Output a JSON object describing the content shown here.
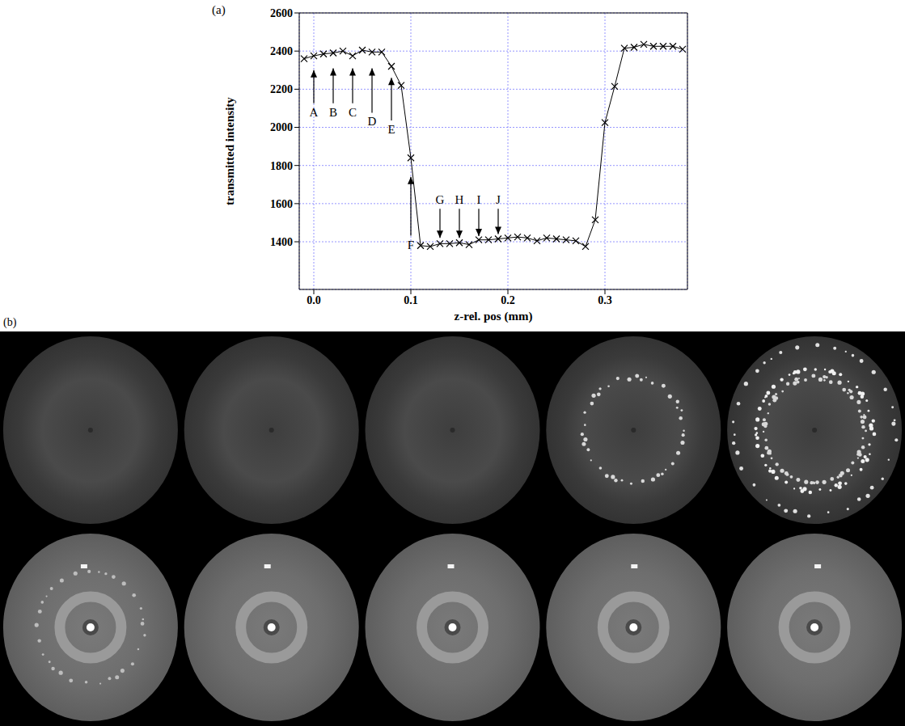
{
  "chart_data": {
    "type": "line",
    "panel_label": "(a)",
    "xlabel": "z-rel. pos (mm)",
    "ylabel": "transmitted intensity",
    "x": [
      -0.01,
      0.0,
      0.01,
      0.02,
      0.03,
      0.04,
      0.05,
      0.06,
      0.07,
      0.08,
      0.09,
      0.1,
      0.11,
      0.12,
      0.13,
      0.14,
      0.15,
      0.16,
      0.17,
      0.18,
      0.19,
      0.2,
      0.21,
      0.22,
      0.23,
      0.24,
      0.25,
      0.26,
      0.27,
      0.28,
      0.29,
      0.3,
      0.31,
      0.32,
      0.33,
      0.34,
      0.35,
      0.36,
      0.37,
      0.38
    ],
    "values": [
      2360,
      2375,
      2385,
      2390,
      2400,
      2375,
      2405,
      2395,
      2395,
      2320,
      2220,
      1840,
      1380,
      1375,
      1390,
      1390,
      1395,
      1385,
      1410,
      1410,
      1415,
      1420,
      1425,
      1420,
      1405,
      1420,
      1415,
      1410,
      1405,
      1375,
      1515,
      2025,
      2215,
      2415,
      2420,
      2435,
      2425,
      2425,
      2425,
      2410
    ],
    "color": "#000000",
    "marker": "x",
    "line_style": "solid",
    "xlim": [
      -0.015,
      0.385
    ],
    "xticks": [
      {
        "value": 0,
        "label": "0.0"
      },
      0.1,
      0.2,
      0.3
    ],
    "ylim": [
      1150,
      2600
    ],
    "yticks": [
      1400,
      1600,
      1800,
      2000,
      2200,
      2400,
      2600
    ],
    "grid": true,
    "annotations": [
      {
        "text": "A",
        "x": 0.0,
        "y": 2080,
        "arrow_to": 2300
      },
      {
        "text": "B",
        "x": 0.02,
        "y": 2080,
        "arrow_to": 2310
      },
      {
        "text": "C",
        "x": 0.04,
        "y": 2080,
        "arrow_to": 2310
      },
      {
        "text": "D",
        "x": 0.06,
        "y": 2030,
        "arrow_to": 2310
      },
      {
        "text": "E",
        "x": 0.08,
        "y": 1990,
        "arrow_to": 2260
      },
      {
        "text": "F",
        "x": 0.1,
        "y": 1385,
        "arrow_to": 1740
      },
      {
        "text": "G",
        "x": 0.13,
        "y": 1620,
        "arrow_to": 1420
      },
      {
        "text": "H",
        "x": 0.15,
        "y": 1620,
        "arrow_to": 1420
      },
      {
        "text": "I",
        "x": 0.17,
        "y": 1620,
        "arrow_to": 1430
      },
      {
        "text": "J",
        "x": 0.19,
        "y": 1620,
        "arrow_to": 1440
      }
    ]
  },
  "image_panel": {
    "label": "(b)"
  }
}
